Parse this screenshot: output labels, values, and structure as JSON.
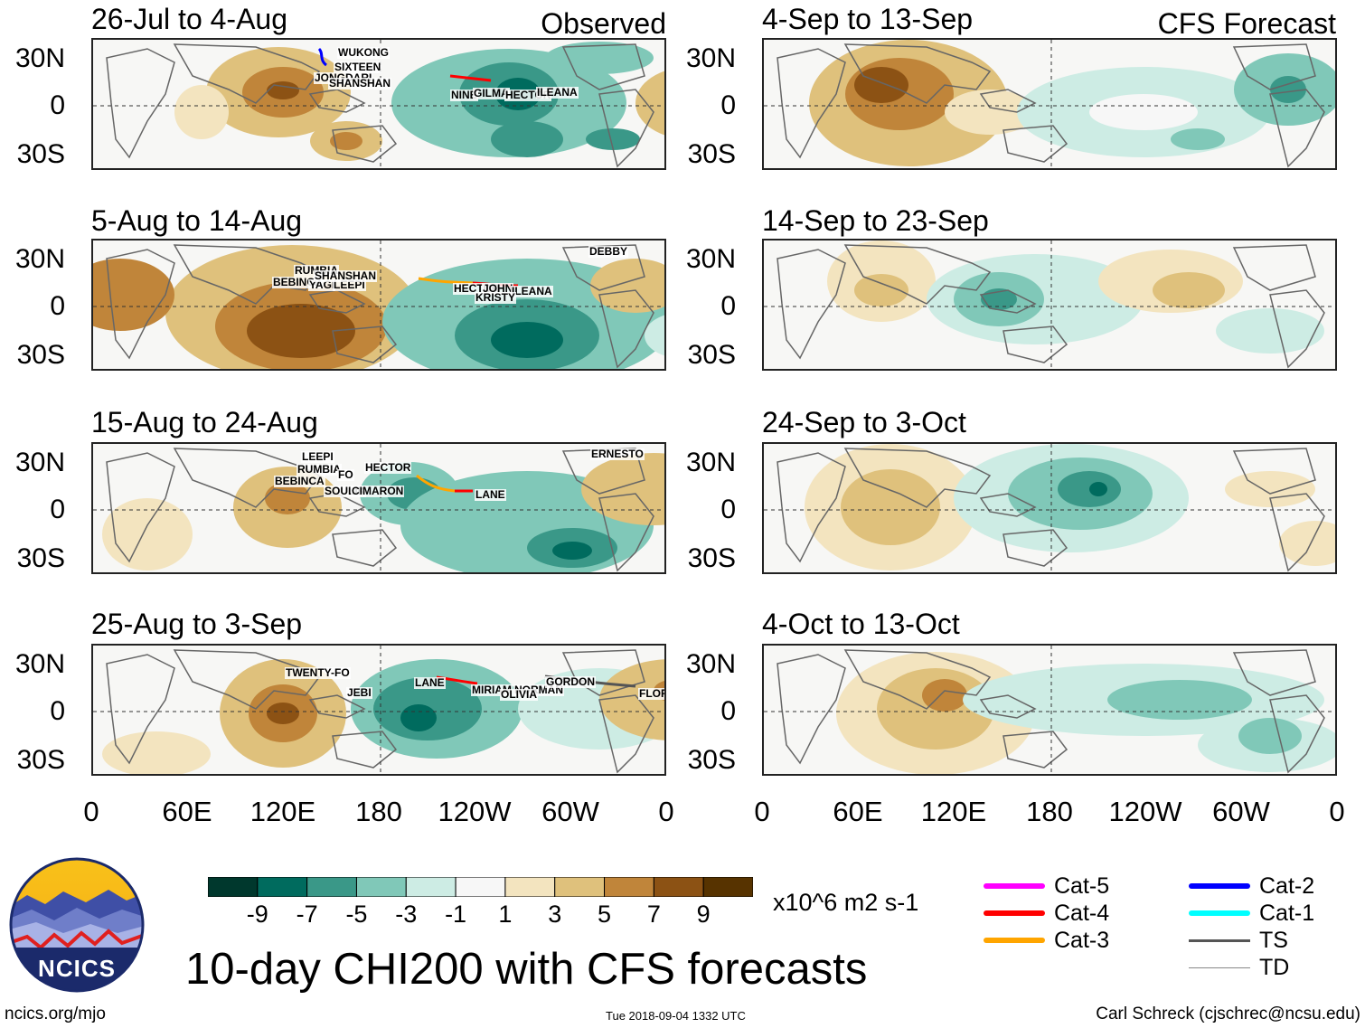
{
  "header": {
    "left_label": "Observed",
    "right_label": "CFS Forecast"
  },
  "observed_panels": [
    {
      "title": "26-Jul to 4-Aug",
      "storms": [
        "WUKONG",
        "SIXTEEN",
        "JONGDARI",
        "SHANSHAN",
        "NINE",
        "GILMA",
        "HECTOR",
        "ILEANA"
      ]
    },
    {
      "title": "5-Aug to 14-Aug",
      "storms": [
        "DEBBY",
        "RUMBIA",
        "BEBINCA",
        "YAGI",
        "LEEPI",
        "SHANSHAN",
        "HECTOR",
        "JOHN",
        "ILEANA",
        "KRISTY"
      ]
    },
    {
      "title": "15-Aug to 24-Aug",
      "storms": [
        "ERNESTO",
        "LEEPI",
        "RUMBIA",
        "BEBINCA",
        "FO",
        "HECTOR",
        "SOULIK",
        "CIMARON",
        "LANE"
      ]
    },
    {
      "title": "25-Aug to 3-Sep",
      "storms": [
        "TWENTY-FO",
        "JEBI",
        "LANE",
        "NORMAN",
        "MIRIAM",
        "OLIVIA",
        "GORDON",
        "FLORENCE"
      ]
    }
  ],
  "forecast_panels": [
    {
      "title": "4-Sep to 13-Sep"
    },
    {
      "title": "14-Sep to 23-Sep"
    },
    {
      "title": "24-Sep to 3-Oct"
    },
    {
      "title": "4-Oct to 13-Oct"
    }
  ],
  "axes": {
    "y_ticks": [
      "30N",
      "0",
      "30S"
    ],
    "x_ticks": [
      "0",
      "60E",
      "120E",
      "180",
      "120W",
      "60W",
      "0"
    ]
  },
  "colorbar": {
    "colors": [
      "#00382d",
      "#006b5e",
      "#3a9888",
      "#80c8b8",
      "#cdece4",
      "#f7f7f7",
      "#f3e4bf",
      "#dfc17c",
      "#c0853a",
      "#8c5214",
      "#573300"
    ],
    "labels": [
      "-9",
      "-7",
      "-5",
      "-3",
      "-1",
      "1",
      "3",
      "5",
      "7",
      "9"
    ],
    "units": "x10^6 m2 s-1"
  },
  "legend": [
    {
      "label": "Cat-5",
      "color": "#ff00ff",
      "style": "thick"
    },
    {
      "label": "Cat-4",
      "color": "#ff0000",
      "style": "thick"
    },
    {
      "label": "Cat-3",
      "color": "#ffa500",
      "style": "thick"
    },
    {
      "label": "Cat-2",
      "color": "#0000ff",
      "style": "thick"
    },
    {
      "label": "Cat-1",
      "color": "#00ffff",
      "style": "thick"
    },
    {
      "label": "TS",
      "color": "#555555",
      "style": "medium"
    },
    {
      "label": "TD",
      "color": "#888888",
      "style": "thin"
    }
  ],
  "logo_text": "NCICS",
  "main_title": "10-day CHI200 with CFS forecasts",
  "footer": {
    "url": "ncics.org/mjo",
    "timestamp": "Tue 2018-09-04 1332 UTC",
    "author": "Carl Schreck (cjschrec@ncsu.edu)"
  }
}
